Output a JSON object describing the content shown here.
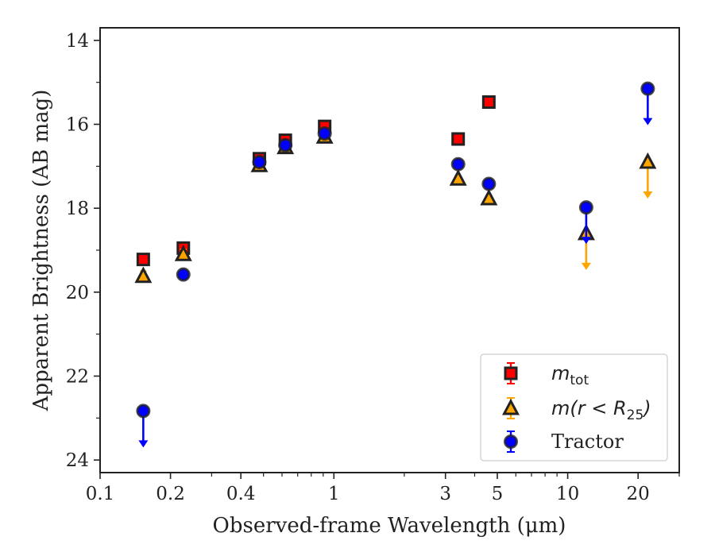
{
  "chart_data": {
    "type": "scatter",
    "xlabel": "Observed-frame Wavelength (μm)",
    "ylabel": "Apparent Brightness (AB mag)",
    "xscale": "log",
    "xlim": [
      0.1,
      30
    ],
    "ylim": [
      24.3,
      13.7
    ],
    "y_inverted": true,
    "x_ticks": [
      {
        "value": 0.1,
        "label": "0.1"
      },
      {
        "value": 0.2,
        "label": "0.2"
      },
      {
        "value": 0.4,
        "label": "0.4"
      },
      {
        "value": 1,
        "label": "1"
      },
      {
        "value": 3,
        "label": "3"
      },
      {
        "value": 5,
        "label": "5"
      },
      {
        "value": 10,
        "label": "10"
      },
      {
        "value": 20,
        "label": "20"
      }
    ],
    "x_minor_ticks": [
      0.3,
      0.5,
      0.6,
      0.7,
      0.8,
      0.9,
      2,
      4,
      6,
      7,
      8,
      9,
      30
    ],
    "y_ticks": [
      {
        "value": 14,
        "label": "14"
      },
      {
        "value": 16,
        "label": "16"
      },
      {
        "value": 18,
        "label": "18"
      },
      {
        "value": 20,
        "label": "20"
      },
      {
        "value": 22,
        "label": "22"
      },
      {
        "value": 24,
        "label": "24"
      }
    ],
    "y_minor_ticks": [
      15,
      17,
      19,
      21,
      23
    ],
    "legend_position": "lower-right",
    "series": [
      {
        "name_main": "m",
        "name_sub": "tot",
        "marker": "square",
        "color": "#ff0000",
        "edge_color": "#222222",
        "err_color": "#ff0000",
        "points": [
          {
            "x": 0.153,
            "y": 19.22,
            "err": 0.08
          },
          {
            "x": 0.227,
            "y": 18.95,
            "err": 0.08
          },
          {
            "x": 0.48,
            "y": 16.82,
            "err": 0.05
          },
          {
            "x": 0.62,
            "y": 16.38,
            "err": 0.05
          },
          {
            "x": 0.913,
            "y": 16.05,
            "err": 0.05
          },
          {
            "x": 3.4,
            "y": 16.35,
            "err": 0.05
          },
          {
            "x": 4.6,
            "y": 15.47,
            "err": 0.05
          }
        ]
      },
      {
        "name_main": "m(r < R",
        "name_sub": "25",
        "name_tail": ")",
        "marker": "triangle",
        "color": "#ffa500",
        "edge_color": "#222222",
        "err_color": "#ffa500",
        "points": [
          {
            "x": 0.153,
            "y": 19.62,
            "err": 0.12
          },
          {
            "x": 0.227,
            "y": 19.1,
            "err": 0.12
          },
          {
            "x": 0.48,
            "y": 16.98,
            "err": 0.05
          },
          {
            "x": 0.62,
            "y": 16.55,
            "err": 0.05
          },
          {
            "x": 0.913,
            "y": 16.3,
            "err": 0.05
          },
          {
            "x": 3.4,
            "y": 17.3,
            "err": 0.05
          },
          {
            "x": 4.6,
            "y": 17.77,
            "err": 0.05
          },
          {
            "x": 12.0,
            "y": 18.6,
            "upper_limit": true
          },
          {
            "x": 22.0,
            "y": 16.9,
            "upper_limit": true
          }
        ]
      },
      {
        "name": "Tractor",
        "marker": "circle",
        "color": "#0000ff",
        "edge_color": "#222222",
        "err_color": "#0000ff",
        "points": [
          {
            "x": 0.153,
            "y": 22.83,
            "upper_limit": true
          },
          {
            "x": 0.227,
            "y": 19.58,
            "err": 0.05
          },
          {
            "x": 0.48,
            "y": 16.9,
            "err": 0.05
          },
          {
            "x": 0.62,
            "y": 16.5,
            "err": 0.05
          },
          {
            "x": 0.913,
            "y": 16.22,
            "err": 0.05
          },
          {
            "x": 3.4,
            "y": 16.95,
            "err": 0.05
          },
          {
            "x": 4.6,
            "y": 17.42,
            "err": 0.05
          },
          {
            "x": 12.0,
            "y": 17.98,
            "upper_limit": true
          },
          {
            "x": 22.0,
            "y": 15.15,
            "upper_limit": true
          }
        ]
      }
    ]
  }
}
